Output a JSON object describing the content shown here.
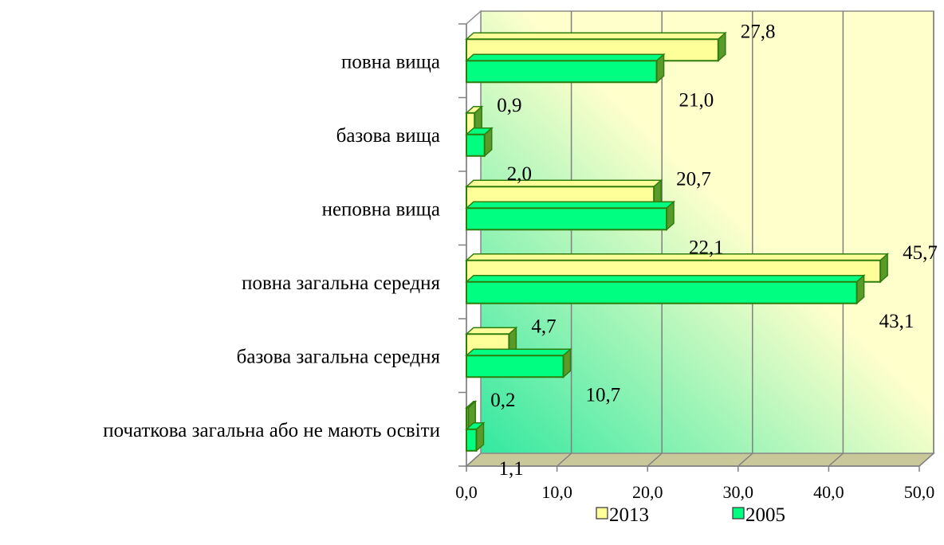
{
  "chart_data": {
    "type": "bar",
    "orientation": "horizontal",
    "three_d": true,
    "categories": [
      "повна вища",
      "базова вища",
      "неповна вища",
      "повна загальна середня",
      "базова загальна середня",
      "початкова загальна або не мають освіти"
    ],
    "series": [
      {
        "name": "2013",
        "color": "#ffff99",
        "values": [
          27.8,
          0.9,
          20.7,
          45.7,
          4.7,
          0.2
        ],
        "labels": [
          "27,8",
          "0,9",
          "20,7",
          "45,7",
          "4,7",
          "0,2"
        ]
      },
      {
        "name": "2005",
        "color": "#00ff80",
        "values": [
          21.0,
          2.0,
          22.1,
          43.1,
          10.7,
          1.1
        ],
        "labels": [
          "21,0",
          "2,0",
          "22,1",
          "43,1",
          "10,7",
          "1,1"
        ]
      }
    ],
    "xlim": [
      0,
      50
    ],
    "x_ticks": [
      "0,0",
      "10,0",
      "20,0",
      "30,0",
      "40,0",
      "50,0"
    ],
    "grid": true,
    "legend_position": "bottom",
    "colors": {
      "bar_border": "#2e7d0e",
      "bar_side": "#5a9a2a",
      "wall_light": "#ffffcc",
      "wall_green": "#33e8a0",
      "gridline": "#808080"
    }
  }
}
